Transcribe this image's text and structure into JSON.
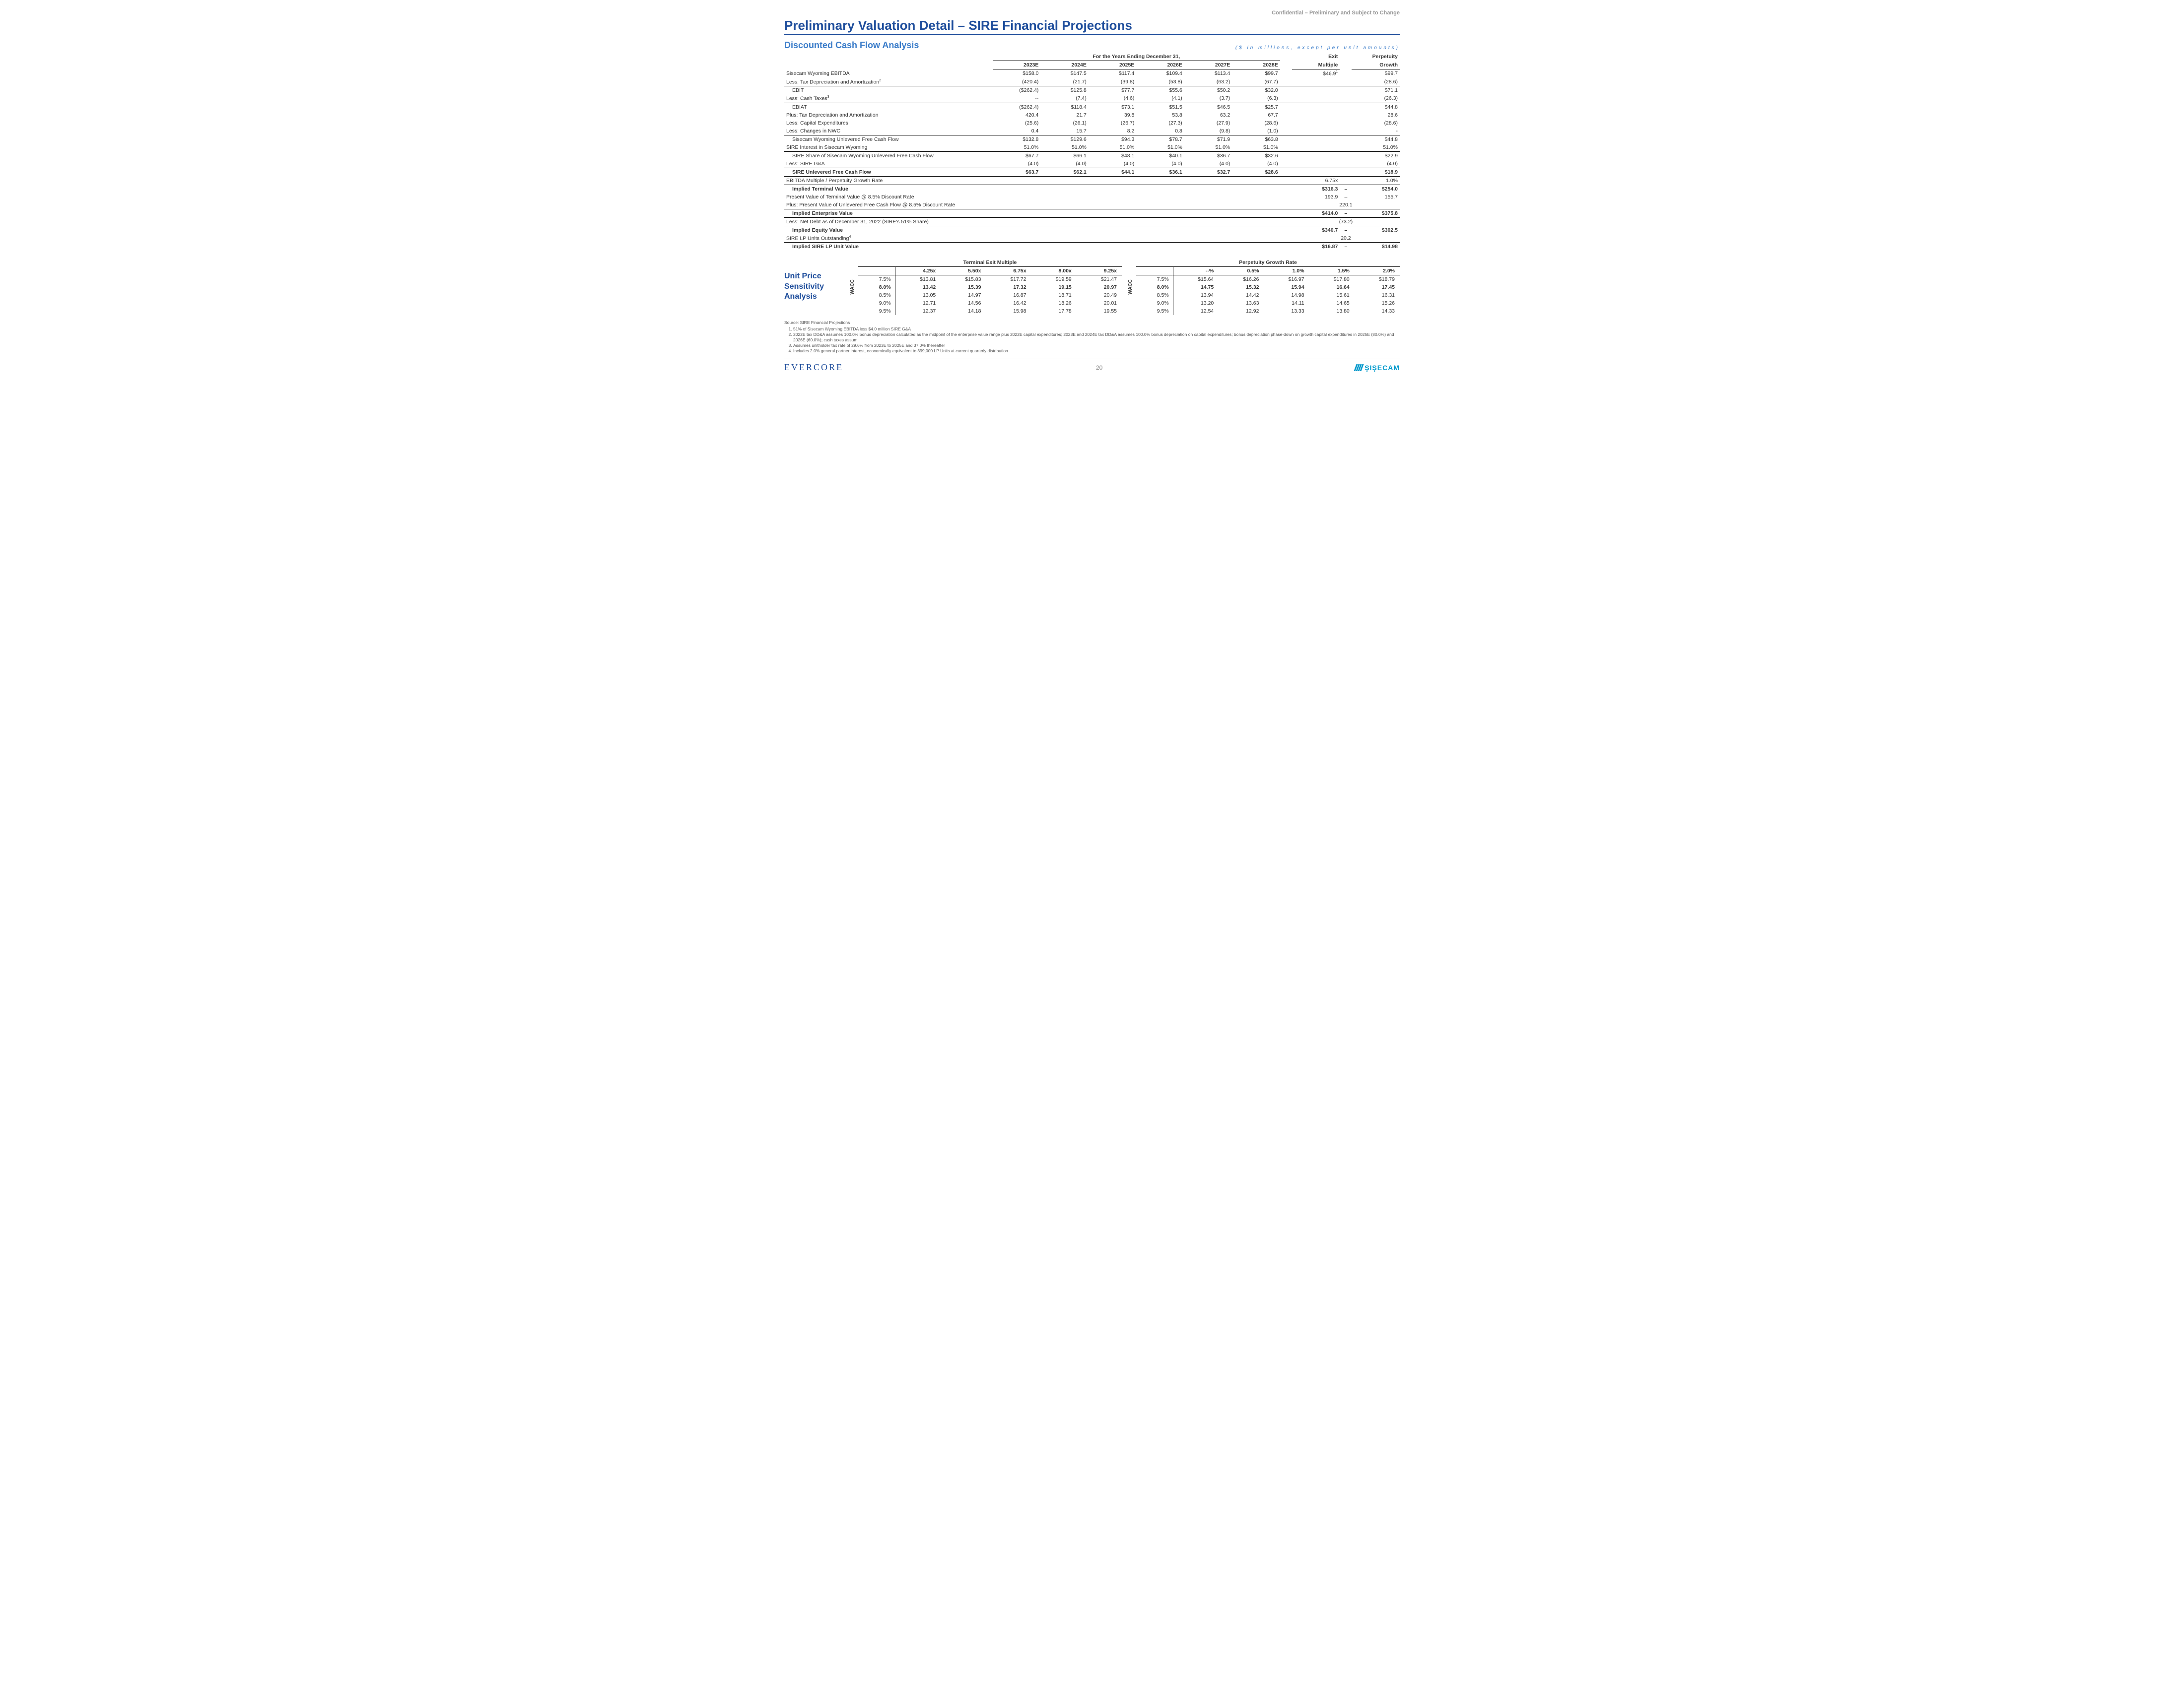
{
  "header": {
    "confidential": "Confidential – Preliminary and Subject to Change",
    "title": "Preliminary Valuation Detail – SIRE Financial Projections",
    "subtitle": "Discounted Cash Flow Analysis",
    "units_note": "($ in millions, except per unit amounts)"
  },
  "dcf": {
    "period_header": "For the Years Ending December 31,",
    "years": [
      "2023E",
      "2024E",
      "2025E",
      "2026E",
      "2027E",
      "2028E"
    ],
    "exit_header_top": "Exit",
    "exit_header_bot": "Multiple",
    "perp_header_top": "Perpetuity",
    "perp_header_bot": "Growth",
    "rows": [
      {
        "label": "Sisecam Wyoming EBITDA",
        "v": [
          "$158.0",
          "$147.5",
          "$117.4",
          "$109.4",
          "$113.4",
          "$99.7"
        ],
        "exit": "$46.9",
        "exit_sup": "1",
        "perp": "$99.7"
      },
      {
        "label": "Less: Tax Depreciation and Amortization",
        "sup": "2",
        "v": [
          "(420.4)",
          "(21.7)",
          "(39.8)",
          "(53.8)",
          "(63.2)",
          "(67.7)"
        ],
        "perp": "(28.6)",
        "bb": true
      },
      {
        "label": "EBIT",
        "v": [
          "($262.4)",
          "$125.8",
          "$77.7",
          "$55.6",
          "$50.2",
          "$32.0"
        ],
        "perp": "$71.1",
        "indent": true
      },
      {
        "label": "Less: Cash Taxes",
        "sup": "3",
        "v": [
          "--",
          "(7.4)",
          "(4.6)",
          "(4.1)",
          "(3.7)",
          "(6.3)"
        ],
        "perp": "(26.3)",
        "bb": true
      },
      {
        "label": "EBIAT",
        "v": [
          "($262.4)",
          "$118.4",
          "$73.1",
          "$51.5",
          "$46.5",
          "$25.7"
        ],
        "perp": "$44.8",
        "indent": true
      },
      {
        "label": "Plus: Tax Depreciation and Amortization",
        "v": [
          "420.4",
          "21.7",
          "39.8",
          "53.8",
          "63.2",
          "67.7"
        ],
        "perp": "28.6"
      },
      {
        "label": "Less: Capital Expenditures",
        "v": [
          "(25.6)",
          "(26.1)",
          "(26.7)",
          "(27.3)",
          "(27.9)",
          "(28.6)"
        ],
        "perp": "(28.6)"
      },
      {
        "label": "Less: Changes in NWC",
        "v": [
          "0.4",
          "15.7",
          "8.2",
          "0.8",
          "(9.8)",
          "(1.0)"
        ],
        "perp": "-",
        "bb": true
      },
      {
        "label": "Sisecam Wyoming Unlevered Free Cash Flow",
        "v": [
          "$132.8",
          "$129.6",
          "$94.3",
          "$78.7",
          "$71.9",
          "$63.8"
        ],
        "perp": "$44.8",
        "indent": true
      },
      {
        "label": "SIRE Interest in Sisecam Wyoming",
        "v": [
          "51.0%",
          "51.0%",
          "51.0%",
          "51.0%",
          "51.0%",
          "51.0%"
        ],
        "perp": "51.0%",
        "bb": true
      },
      {
        "label": "SIRE Share of Sisecam Wyoming Unlevered Free Cash Flow",
        "v": [
          "$67.7",
          "$66.1",
          "$48.1",
          "$40.1",
          "$36.7",
          "$32.6"
        ],
        "perp": "$22.9",
        "indent": true
      },
      {
        "label": "Less: SIRE G&A",
        "v": [
          "(4.0)",
          "(4.0)",
          "(4.0)",
          "(4.0)",
          "(4.0)",
          "(4.0)"
        ],
        "perp": "(4.0)",
        "bb": true
      },
      {
        "label": "SIRE Unlevered Free Cash Flow",
        "v": [
          "$63.7",
          "$62.1",
          "$44.1",
          "$36.1",
          "$32.7",
          "$28.6"
        ],
        "perp": "$18.9",
        "bold": true,
        "indent": true,
        "bb": true
      },
      {
        "label": "EBITDA Multiple / Perpetuity Growth Rate",
        "v": [
          "",
          "",
          "",
          "",
          "",
          ""
        ],
        "exit": "6.75x",
        "perp": "1.0%",
        "bb": true
      },
      {
        "label": "Implied Terminal Value",
        "v": [
          "",
          "",
          "",
          "",
          "",
          ""
        ],
        "exit": "$316.3",
        "dash": "–",
        "perp": "$254.0",
        "bold": true,
        "indent": true
      },
      {
        "label": "Present Value of Terminal Value @ 8.5% Discount Rate",
        "v": [
          "",
          "",
          "",
          "",
          "",
          ""
        ],
        "exit": "193.9",
        "dash": "–",
        "perp": "155.7"
      },
      {
        "label": "Plus: Present Value of Unlevered Free Cash Flow @ 8.5% Discount Rate",
        "v": [
          "",
          "",
          "",
          "",
          "",
          ""
        ],
        "exit": "",
        "perp": "220.1",
        "bb": true,
        "exit_center": true
      },
      {
        "label": "Implied Enterprise Value",
        "v": [
          "",
          "",
          "",
          "",
          "",
          ""
        ],
        "exit": "$414.0",
        "dash": "–",
        "perp": "$375.8",
        "bold": true,
        "indent": true,
        "bb": true
      },
      {
        "label": "Less: Net Debt as of December 31, 2022 (SIRE's 51% Share)",
        "v": [
          "",
          "",
          "",
          "",
          "",
          ""
        ],
        "exit": "",
        "perp": "(73.2)",
        "bb": true,
        "exit_center": true
      },
      {
        "label": "Implied Equity Value",
        "v": [
          "",
          "",
          "",
          "",
          "",
          ""
        ],
        "exit": "$340.7",
        "dash": "–",
        "perp": "$302.5",
        "bold": true,
        "indent": true
      },
      {
        "label": "SIRE LP Units Outstanding",
        "sup": "4",
        "v": [
          "",
          "",
          "",
          "",
          "",
          ""
        ],
        "exit": "",
        "perp": "20.2",
        "bb": true,
        "exit_center": true
      },
      {
        "label": "Implied SIRE LP Unit Value",
        "v": [
          "",
          "",
          "",
          "",
          "",
          ""
        ],
        "exit": "$16.87",
        "dash": "–",
        "perp": "$14.98",
        "bold": true,
        "indent": true
      }
    ]
  },
  "sensitivity": {
    "section_label": "Unit Price Sensitivity Analysis",
    "wacc_label": "WACC",
    "left": {
      "title": "Terminal Exit Multiple",
      "cols": [
        "4.25x",
        "5.50x",
        "6.75x",
        "8.00x",
        "9.25x"
      ],
      "rows": [
        {
          "r": "7.5%",
          "v": [
            "$13.81",
            "$15.83",
            "$17.72",
            "$19.59",
            "$21.47"
          ]
        },
        {
          "r": "8.0%",
          "v": [
            "13.42",
            "15.39",
            "17.32",
            "19.15",
            "20.97"
          ],
          "hl": true
        },
        {
          "r": "8.5%",
          "v": [
            "13.05",
            "14.97",
            "16.87",
            "18.71",
            "20.49"
          ]
        },
        {
          "r": "9.0%",
          "v": [
            "12.71",
            "14.56",
            "16.42",
            "18.26",
            "20.01"
          ]
        },
        {
          "r": "9.5%",
          "v": [
            "12.37",
            "14.18",
            "15.98",
            "17.78",
            "19.55"
          ]
        }
      ]
    },
    "right": {
      "title": "Perpetuity Growth Rate",
      "cols": [
        "--%",
        "0.5%",
        "1.0%",
        "1.5%",
        "2.0%"
      ],
      "rows": [
        {
          "r": "7.5%",
          "v": [
            "$15.64",
            "$16.26",
            "$16.97",
            "$17.80",
            "$18.79"
          ]
        },
        {
          "r": "8.0%",
          "v": [
            "14.75",
            "15.32",
            "15.94",
            "16.64",
            "17.45"
          ],
          "hl": true
        },
        {
          "r": "8.5%",
          "v": [
            "13.94",
            "14.42",
            "14.98",
            "15.61",
            "16.31"
          ]
        },
        {
          "r": "9.0%",
          "v": [
            "13.20",
            "13.63",
            "14.11",
            "14.65",
            "15.26"
          ]
        },
        {
          "r": "9.5%",
          "v": [
            "12.54",
            "12.92",
            "13.33",
            "13.80",
            "14.33"
          ]
        }
      ]
    }
  },
  "footnotes": {
    "source": "Source: SIRE Financial Projections",
    "items": [
      "51% of Sisecam Wyoming EBITDA less $4.0 million SIRE G&A",
      "2022E tax DD&A assumes 100.0% bonus depreciation calculated as the midpoint of the enterprise value range plus 2022E capital expenditures; 2023E and 2024E tax DD&A assumes 100.0% bonus depreciation on capital expenditures; bonus depreciation phase-down on growth capital expenditures in 2025E (80.0%) and 2026E (60.0%); cash taxes assum",
      "Assumes unitholder tax rate of 29.6% from 2023E to 2025E and 37.0% thereafter",
      "Includes 2.0% general partner interest, economically equivalent to 399,000 LP Units at current quarterly distribution"
    ]
  },
  "footer": {
    "left": "EVERCORE",
    "page": "20",
    "right": "ŞIŞECAM"
  }
}
